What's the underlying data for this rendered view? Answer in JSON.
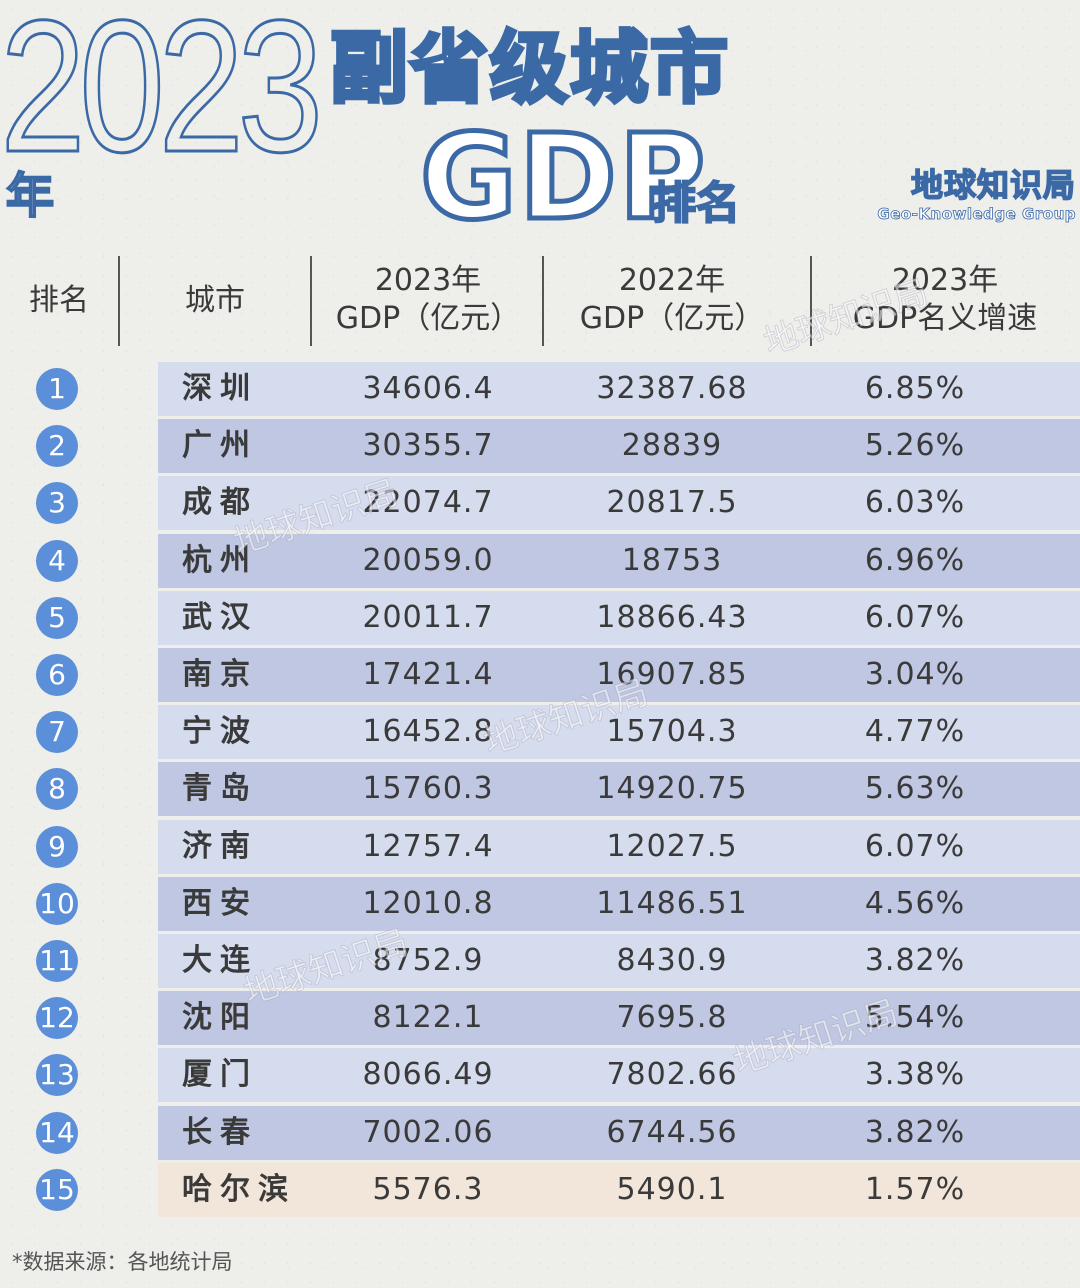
{
  "year_big": "2023",
  "year_char": "年",
  "title_line1": "副省级城市",
  "title_gdp": "GDP",
  "title_rank": "排名",
  "brand_cn": "地球知识局",
  "brand_en": "Geo-Knowledge Group",
  "headers": {
    "rank": "排名",
    "city": "城市",
    "gdp2023_line1": "2023年",
    "gdp2023_line2": "GDP（亿元）",
    "gdp2022_line1": "2022年",
    "gdp2022_line2": "GDP（亿元）",
    "growth_line1": "2023年",
    "growth_line2": "GDP名义增速"
  },
  "rows": [
    {
      "rank": "1",
      "city": "深圳",
      "gdp2023": "34606.4",
      "gdp2022": "32387.68",
      "growth": "6.85%"
    },
    {
      "rank": "2",
      "city": "广州",
      "gdp2023": "30355.7",
      "gdp2022": "28839",
      "growth": "5.26%"
    },
    {
      "rank": "3",
      "city": "成都",
      "gdp2023": "22074.7",
      "gdp2022": "20817.5",
      "growth": "6.03%"
    },
    {
      "rank": "4",
      "city": "杭州",
      "gdp2023": "20059.0",
      "gdp2022": "18753",
      "growth": "6.96%"
    },
    {
      "rank": "5",
      "city": "武汉",
      "gdp2023": "20011.7",
      "gdp2022": "18866.43",
      "growth": "6.07%"
    },
    {
      "rank": "6",
      "city": "南京",
      "gdp2023": "17421.4",
      "gdp2022": "16907.85",
      "growth": "3.04%"
    },
    {
      "rank": "7",
      "city": "宁波",
      "gdp2023": "16452.8",
      "gdp2022": "15704.3",
      "growth": "4.77%"
    },
    {
      "rank": "8",
      "city": "青岛",
      "gdp2023": "15760.3",
      "gdp2022": "14920.75",
      "growth": "5.63%"
    },
    {
      "rank": "9",
      "city": "济南",
      "gdp2023": "12757.4",
      "gdp2022": "12027.5",
      "growth": "6.07%"
    },
    {
      "rank": "10",
      "city": "西安",
      "gdp2023": "12010.8",
      "gdp2022": "11486.51",
      "growth": "4.56%"
    },
    {
      "rank": "11",
      "city": "大连",
      "gdp2023": "8752.9",
      "gdp2022": "8430.9",
      "growth": "3.82%"
    },
    {
      "rank": "12",
      "city": "沈阳",
      "gdp2023": "8122.1",
      "gdp2022": "7695.8",
      "growth": "5.54%"
    },
    {
      "rank": "13",
      "city": "厦门",
      "gdp2023": "8066.49",
      "gdp2022": "7802.66",
      "growth": "3.38%"
    },
    {
      "rank": "14",
      "city": "长春",
      "gdp2023": "7002.06",
      "gdp2022": "6744.56",
      "growth": "3.82%"
    },
    {
      "rank": "15",
      "city": "哈尔滨",
      "gdp2023": "5576.3",
      "gdp2022": "5490.1",
      "growth": "1.57%"
    }
  ],
  "source_note": "*数据来源：各地统计局",
  "colors": {
    "accent": "#3b69a6",
    "badge": "#5b8fd9",
    "row_light": "#d5dcee",
    "row_dark": "#bfc7e2",
    "row_last": "#f2e6da"
  }
}
